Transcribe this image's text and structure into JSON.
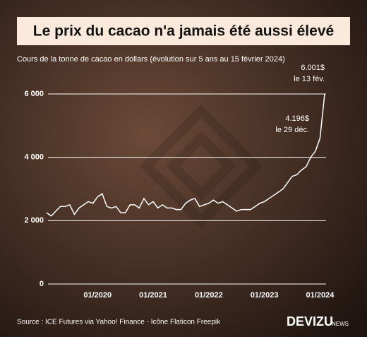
{
  "chart_data": {
    "type": "line",
    "title": "Le prix du cacao n'a jamais été aussi élevé",
    "subtitle": "Cours de la tonne de cacao en dollars (évolution sur 5 ans au 15 février 2024)",
    "x": [
      "02/2019",
      "03/2019",
      "04/2019",
      "05/2019",
      "06/2019",
      "07/2019",
      "08/2019",
      "09/2019",
      "10/2019",
      "11/2019",
      "12/2019",
      "01/2020",
      "02/2020",
      "03/2020",
      "04/2020",
      "05/2020",
      "06/2020",
      "07/2020",
      "08/2020",
      "09/2020",
      "10/2020",
      "11/2020",
      "12/2020",
      "01/2021",
      "02/2021",
      "03/2021",
      "04/2021",
      "05/2021",
      "06/2021",
      "07/2021",
      "08/2021",
      "09/2021",
      "10/2021",
      "11/2021",
      "12/2021",
      "01/2022",
      "02/2022",
      "03/2022",
      "04/2022",
      "05/2022",
      "06/2022",
      "07/2022",
      "08/2022",
      "09/2022",
      "10/2022",
      "11/2022",
      "12/2022",
      "01/2023",
      "02/2023",
      "03/2023",
      "04/2023",
      "05/2023",
      "06/2023",
      "07/2023",
      "08/2023",
      "09/2023",
      "10/2023",
      "11/2023",
      "12/2023",
      "01/2024",
      "02/2024"
    ],
    "series": [
      {
        "name": "Cours",
        "color": "#ffffff",
        "values": [
          2250,
          2150,
          2300,
          2450,
          2450,
          2500,
          2200,
          2400,
          2500,
          2600,
          2550,
          2750,
          2850,
          2450,
          2400,
          2450,
          2250,
          2250,
          2500,
          2500,
          2400,
          2700,
          2500,
          2600,
          2400,
          2500,
          2400,
          2400,
          2350,
          2350,
          2550,
          2650,
          2700,
          2450,
          2500,
          2550,
          2650,
          2550,
          2600,
          2500,
          2400,
          2300,
          2350,
          2350,
          2350,
          2450,
          2550,
          2600,
          2700,
          2800,
          2900,
          3000,
          3200,
          3400,
          3450,
          3600,
          3700,
          4000,
          4196,
          4600,
          6001
        ]
      }
    ],
    "xlim": [
      "02/2019",
      "02/2024"
    ],
    "xticks": [
      "01/2020",
      "01/2021",
      "01/2022",
      "01/2023",
      "01/2024"
    ],
    "ylim": [
      0,
      6000
    ],
    "yticks": [
      0,
      {
        "value": 2000,
        "label": "2 000"
      },
      {
        "value": 4000,
        "label": "4 000"
      },
      {
        "value": 6000,
        "label": "6 000"
      }
    ],
    "grid": true,
    "annotations": [
      {
        "text": "6.001$",
        "text2": "le 13 fév."
      },
      {
        "text": "4.196$",
        "text2": "le 29 déc."
      }
    ],
    "source": "Source : ICE Futures via Yahoo! Finance - Icône Flaticon Freepik",
    "logo": "DEVIZU",
    "logo_sub": "NEWS"
  }
}
